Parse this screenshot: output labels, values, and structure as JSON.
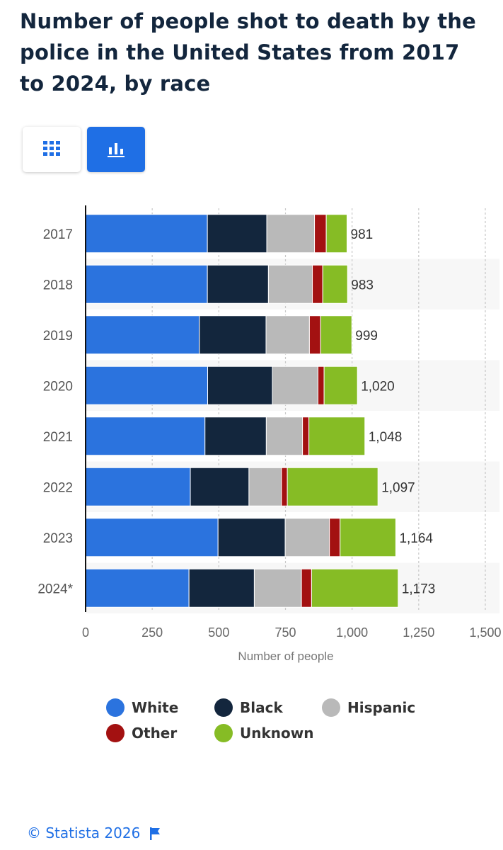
{
  "header": {
    "title": "Number of people shot to death by the police in the United States from 2017 to 2024, by race"
  },
  "chart_data": {
    "type": "bar",
    "orientation": "horizontal",
    "stacked": true,
    "categories": [
      "2017",
      "2018",
      "2019",
      "2020",
      "2021",
      "2022",
      "2023",
      "2024*"
    ],
    "series": [
      {
        "name": "White",
        "color": "#2b73de",
        "values": [
          457,
          457,
          427,
          458,
          448,
          393,
          497,
          388
        ]
      },
      {
        "name": "Black",
        "color": "#13263d",
        "values": [
          223,
          229,
          250,
          243,
          230,
          220,
          252,
          245
        ]
      },
      {
        "name": "Hispanic",
        "color": "#b9b9b9",
        "values": [
          179,
          165,
          163,
          171,
          136,
          122,
          166,
          177
        ]
      },
      {
        "name": "Other",
        "color": "#a31111",
        "values": [
          44,
          39,
          42,
          23,
          24,
          22,
          40,
          38
        ]
      },
      {
        "name": "Unknown",
        "color": "#86bc25",
        "values": [
          78,
          93,
          117,
          125,
          210,
          340,
          209,
          325
        ]
      }
    ],
    "totals": [
      "981",
      "983",
      "999",
      "1,020",
      "1,048",
      "1,097",
      "1,164",
      "1,173"
    ],
    "xlabel": "Number of people",
    "ylabel": "",
    "xlim": [
      0,
      1500
    ],
    "xticks": [
      0,
      250,
      500,
      750,
      1000,
      1250,
      1500
    ],
    "xtick_labels": [
      "0",
      "250",
      "500",
      "750",
      "1,000",
      "1,250",
      "1,500"
    ],
    "grid": true,
    "legend_position": "bottom"
  },
  "view_toggle": {
    "table_icon": "grid-icon",
    "chart_icon": "bar-chart-icon",
    "active": "chart"
  },
  "footer": {
    "copyright": "© Statista 2026",
    "icon": "flag-icon"
  }
}
